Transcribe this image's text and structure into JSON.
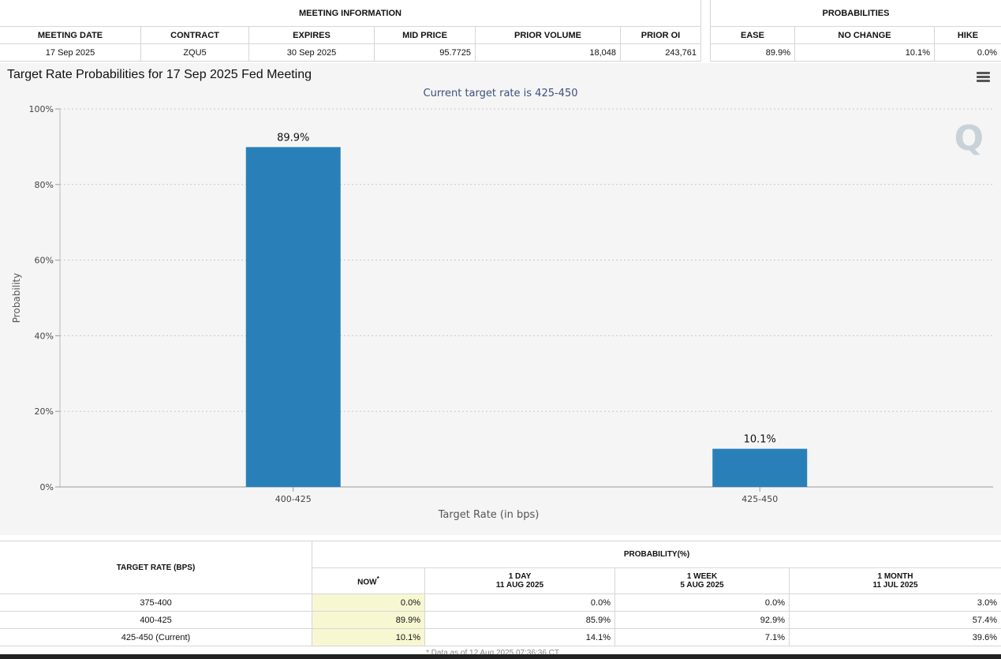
{
  "meeting_info": {
    "group_title": "MEETING INFORMATION",
    "headers": [
      "MEETING DATE",
      "CONTRACT",
      "EXPIRES",
      "MID PRICE",
      "PRIOR VOLUME",
      "PRIOR OI"
    ],
    "values": [
      "17 Sep 2025",
      "ZQU5",
      "30 Sep 2025",
      "95.7725",
      "18,048",
      "243,761"
    ]
  },
  "probabilities": {
    "group_title": "PROBABILITIES",
    "headers": [
      "EASE",
      "NO CHANGE",
      "HIKE"
    ],
    "values": [
      "89.9%",
      "10.1%",
      "0.0%"
    ]
  },
  "chart": {
    "menu_icon": "hamburger-menu-icon",
    "watermark": "Q"
  },
  "chart_data": {
    "type": "bar",
    "title": "Target Rate Probabilities for 17 Sep 2025 Fed Meeting",
    "subtitle": "Current target rate is 425-450",
    "xlabel": "Target Rate (in bps)",
    "ylabel": "Probability",
    "categories": [
      "400-425",
      "425-450"
    ],
    "values": [
      89.9,
      10.1
    ],
    "data_labels": [
      "89.9%",
      "10.1%"
    ],
    "ylim": [
      0,
      100
    ],
    "yticks": [
      "0%",
      "20%",
      "40%",
      "60%",
      "80%",
      "100%"
    ],
    "bar_color": "#2980b9",
    "grid": true
  },
  "prob_table": {
    "rate_header": "TARGET RATE (BPS)",
    "prob_header": "PROBABILITY(%)",
    "now_header": "NOW",
    "now_mark": "*",
    "cols": [
      {
        "label": "1 DAY",
        "date": "11 AUG 2025"
      },
      {
        "label": "1 WEEK",
        "date": "5 AUG 2025"
      },
      {
        "label": "1 MONTH",
        "date": "11 JUL 2025"
      }
    ],
    "rows": [
      {
        "rate": "375-400",
        "now": "0.0%",
        "day": "0.0%",
        "week": "0.0%",
        "month": "3.0%"
      },
      {
        "rate": "400-425",
        "now": "89.9%",
        "day": "85.9%",
        "week": "92.9%",
        "month": "57.4%"
      },
      {
        "rate": "425-450 (Current)",
        "now": "10.1%",
        "day": "14.1%",
        "week": "7.1%",
        "month": "39.6%"
      }
    ],
    "footnote": "* Data as of 12 Aug 2025 07:36:36 CT"
  }
}
